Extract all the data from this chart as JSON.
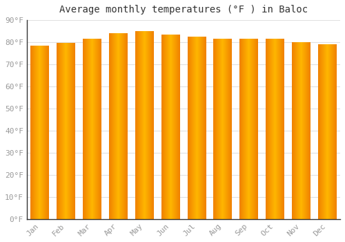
{
  "months": [
    "Jan",
    "Feb",
    "Mar",
    "Apr",
    "May",
    "Jun",
    "Jul",
    "Aug",
    "Sep",
    "Oct",
    "Nov",
    "Dec"
  ],
  "values": [
    78.5,
    79.5,
    81.5,
    84.0,
    85.0,
    83.5,
    82.5,
    81.5,
    81.5,
    81.5,
    80.0,
    79.0
  ],
  "bar_color_center": "#FFB700",
  "bar_color_edge": "#F08000",
  "background_color": "#FFFFFF",
  "grid_color": "#E0E0E0",
  "title": "Average monthly temperatures (°F ) in Baloc",
  "title_fontsize": 10,
  "tick_label_color": "#999999",
  "tick_label_fontsize": 8,
  "ylim": [
    0,
    90
  ],
  "yticks": [
    0,
    10,
    20,
    30,
    40,
    50,
    60,
    70,
    80,
    90
  ],
  "ytick_labels": [
    "0°F",
    "10°F",
    "20°F",
    "30°F",
    "40°F",
    "50°F",
    "60°F",
    "70°F",
    "80°F",
    "90°F"
  ]
}
